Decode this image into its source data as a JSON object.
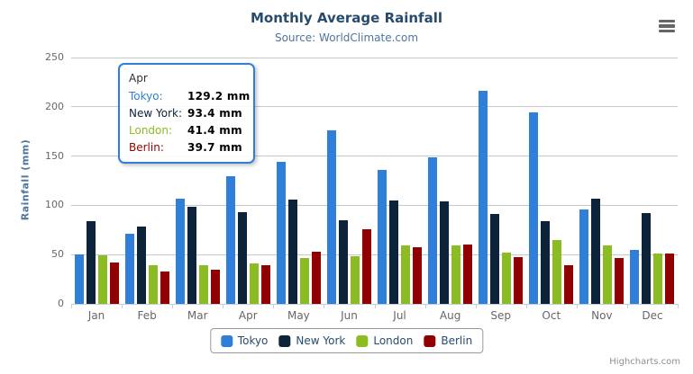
{
  "chart_data": {
    "type": "bar",
    "title": "Monthly Average Rainfall",
    "subtitle": "Source: WorldClimate.com",
    "categories": [
      "Jan",
      "Feb",
      "Mar",
      "Apr",
      "May",
      "Jun",
      "Jul",
      "Aug",
      "Sep",
      "Oct",
      "Nov",
      "Dec"
    ],
    "series": [
      {
        "name": "Tokyo",
        "color": "#2f7ed8",
        "values": [
          49.9,
          71.5,
          106.4,
          129.2,
          144.0,
          176.0,
          135.6,
          148.5,
          216.4,
          194.1,
          95.6,
          54.4
        ]
      },
      {
        "name": "New York",
        "color": "#0d233a",
        "values": [
          83.6,
          78.8,
          98.5,
          93.4,
          106.0,
          84.5,
          105.0,
          104.3,
          91.2,
          83.5,
          106.6,
          92.3
        ]
      },
      {
        "name": "London",
        "color": "#8bbc21",
        "values": [
          48.9,
          38.8,
          39.3,
          41.4,
          47.0,
          48.3,
          59.0,
          59.6,
          52.4,
          65.2,
          59.3,
          51.2
        ]
      },
      {
        "name": "Berlin",
        "color": "#910000",
        "values": [
          42.4,
          33.2,
          34.5,
          39.7,
          52.6,
          75.5,
          57.4,
          60.4,
          47.6,
          39.1,
          46.8,
          51.1
        ]
      }
    ],
    "xlabel": "",
    "ylabel": "Rainfall (mm)",
    "ylim": [
      0,
      250
    ],
    "yticks": [
      0,
      50,
      100,
      150,
      200,
      250
    ],
    "grid": true,
    "legend_position": "bottom"
  },
  "tooltip": {
    "header": "Apr",
    "rows": [
      {
        "label": "Tokyo:",
        "value": "129.2 mm",
        "color": "#2f7ed8"
      },
      {
        "label": "New York:",
        "value": "93.4 mm",
        "color": "#0d233a"
      },
      {
        "label": "London:",
        "value": "41.4 mm",
        "color": "#8bbc21"
      },
      {
        "label": "Berlin:",
        "value": "39.7 mm",
        "color": "#910000"
      }
    ],
    "border_color": "#2f7ed8"
  },
  "credits": {
    "text": "Highcharts.com"
  },
  "icons": {
    "menu": "hamburger-icon"
  },
  "colors": {
    "title": "#274b6d",
    "subtitle": "#4d759e",
    "axis_title": "#4d759e",
    "axis_label": "#666666",
    "gridline": "#c8c8c8",
    "axis_line": "#c0d0e0",
    "legend_text": "#274b6d"
  }
}
